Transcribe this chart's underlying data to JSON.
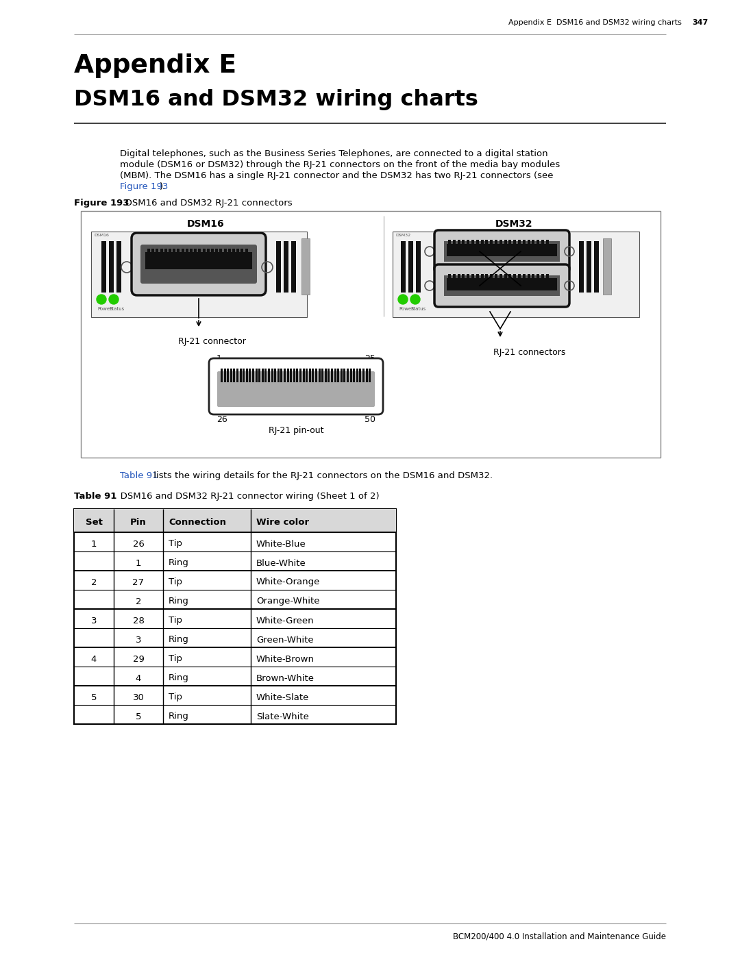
{
  "page_header_text": "Appendix E  DSM16 and DSM32 wiring charts",
  "page_header_number": "347",
  "appendix_title_line1": "Appendix E",
  "appendix_title_line2": "DSM16 and DSM32 wiring charts",
  "body_line1": "Digital telephones, such as the Business Series Telephones, are connected to a digital station",
  "body_line2": "module (DSM16 or DSM32) through the RJ-21 connectors on the front of the media bay modules",
  "body_line3": "(MBM). The DSM16 has a single RJ-21 connector and the DSM32 has two RJ-21 connectors (see",
  "body_line4_prefix": "Figure 193",
  "body_line4_suffix": ").",
  "figure_label_bold": "Figure 193",
  "figure_caption": "   DSM16 and DSM32 RJ-21 connectors",
  "dsm16_label": "DSM16",
  "dsm32_label": "DSM32",
  "rj21_connector_label": "RJ-21 connector",
  "rj21_connectors_label": "RJ-21 connectors",
  "rj21_pinout_label": "RJ-21 pin-out",
  "table_ref_blue": "Table 91",
  "table_ref_rest": " lists the wiring details for the RJ-21 connectors on the DSM16 and DSM32.",
  "table_label_bold": "Table 91",
  "table_label_rest": "   DSM16 and DSM32 RJ-21 connector wiring (Sheet 1 of 2)",
  "table_headers": [
    "Set",
    "Pin",
    "Connection",
    "Wire color"
  ],
  "table_data": [
    [
      "1",
      "26",
      "Tip",
      "White-Blue"
    ],
    [
      "",
      "1",
      "Ring",
      "Blue-White"
    ],
    [
      "2",
      "27",
      "Tip",
      "White-Orange"
    ],
    [
      "",
      "2",
      "Ring",
      "Orange-White"
    ],
    [
      "3",
      "28",
      "Tip",
      "White-Green"
    ],
    [
      "",
      "3",
      "Ring",
      "Green-White"
    ],
    [
      "4",
      "29",
      "Tip",
      "White-Brown"
    ],
    [
      "",
      "4",
      "Ring",
      "Brown-White"
    ],
    [
      "5",
      "30",
      "Tip",
      "White-Slate"
    ],
    [
      "",
      "5",
      "Ring",
      "Slate-White"
    ]
  ],
  "footer_text": "BCM200/400 4.0 Installation and Maintenance Guide",
  "bg_color": "#ffffff",
  "text_color": "#000000",
  "blue_color": "#2255bb",
  "gray_line_color": "#999999",
  "table_border_color": "#000000",
  "fig_border_color": "#999999"
}
